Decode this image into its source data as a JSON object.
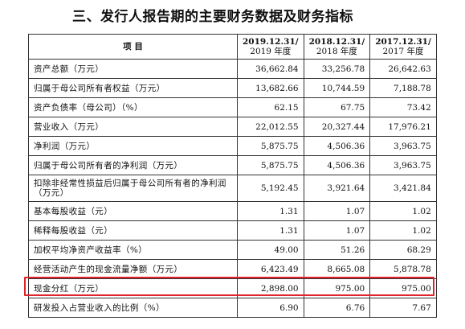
{
  "heading": "三、发行人报告期的主要财务数据及财务指标",
  "table": {
    "item_header": "项      目",
    "periods": [
      {
        "line1": "2019.12.31/",
        "line2": "2019 年度"
      },
      {
        "line1": "2018.12.31/",
        "line2": "2018 年度"
      },
      {
        "line1": "2017.12.31/",
        "line2": "2017 年度"
      }
    ],
    "rows": [
      {
        "label": "资产总额（万元）",
        "values": [
          "36,662.84",
          "33,256.78",
          "26,642.63"
        ]
      },
      {
        "label": "归属于母公司所有者权益（万元）",
        "values": [
          "13,682.66",
          "10,744.59",
          "7,188.78"
        ]
      },
      {
        "label": "资产负债率（母公司）（%）",
        "values": [
          "62.15",
          "67.75",
          "73.42"
        ]
      },
      {
        "label": "营业收入（万元）",
        "values": [
          "22,012.55",
          "20,327.44",
          "17,976.21"
        ]
      },
      {
        "label": "净利润（万元）",
        "values": [
          "5,875.75",
          "4,506.36",
          "3,963.75"
        ]
      },
      {
        "label": "归属于母公司所有者的净利润（万元）",
        "values": [
          "5,875.75",
          "4,506.36",
          "3,963.75"
        ]
      },
      {
        "label": "扣除非经常性损益后归属于母公司所有者的净利润（万元）",
        "values": [
          "5,192.45",
          "3,921.64",
          "3,421.84"
        ]
      },
      {
        "label": "基本每股收益（元）",
        "values": [
          "1.31",
          "1.07",
          "1.02"
        ]
      },
      {
        "label": "稀释每股收益（元）",
        "values": [
          "1.31",
          "1.07",
          "1.02"
        ]
      },
      {
        "label": "加权平均净资产收益率（%）",
        "values": [
          "49.00",
          "51.26",
          "68.29"
        ]
      },
      {
        "label": "经营活动产生的现金流量净额（万元）",
        "values": [
          "6,423.49",
          "8,665.08",
          "5,878.78"
        ]
      },
      {
        "label": "现金分红（万元）",
        "values": [
          "2,898.00",
          "975.00",
          "975.00"
        ]
      },
      {
        "label": "研发投入占营业收入的比例（%）",
        "values": [
          "6.90",
          "6.76",
          "7.67"
        ]
      }
    ]
  },
  "highlight_color": "#e0242b"
}
